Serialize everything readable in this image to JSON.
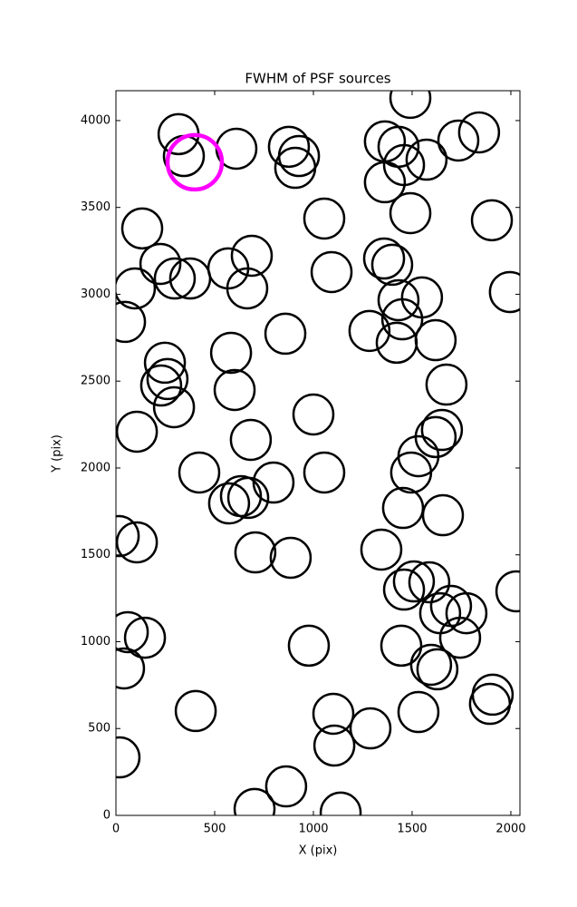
{
  "chart_data": {
    "type": "scatter",
    "title": "FWHM of PSF sources",
    "x_label": "X (pix)",
    "y_label": "Y (pix)",
    "x": [
      1491,
      317,
      344,
      610,
      876,
      927,
      908,
      1362,
      1431,
      1459,
      1573,
      1734,
      1839,
      1362,
      1491,
      1904,
      1055,
      133,
      225,
      96,
      298,
      376,
      569,
      688,
      665,
      1092,
      1358,
      1399,
      1431,
      1550,
      1995,
      46,
      1450,
      1284,
      858,
      1422,
      1619,
      583,
      248,
      261,
      229,
      1674,
      601,
      294,
      1000,
      1651,
      1619,
      683,
      106,
      1532,
      1495,
      422,
      1055,
      798,
      633,
      670,
      573,
      1454,
      1656,
      14,
      106,
      1344,
      706,
      885,
      1509,
      1587,
      1459,
      1642,
      1697,
      1775,
      2028,
      60,
      147,
      1743,
      1445,
      977,
      1596,
      1628,
      41,
      1908,
      1894,
      404,
      1532,
      1101,
      1289,
      1106,
      18,
      862,
      702,
      1138
    ],
    "values": [
      4131,
      3922,
      3796,
      3838,
      3849,
      3796,
      3728,
      3880,
      3849,
      3744,
      3775,
      3885,
      3932,
      3645,
      3467,
      3426,
      3436,
      3379,
      3175,
      3034,
      3091,
      3091,
      3149,
      3222,
      3034,
      3128,
      3206,
      3170,
      2966,
      2982,
      3013,
      2841,
      2856,
      2789,
      2773,
      2721,
      2736,
      2663,
      2606,
      2512,
      2475,
      2480,
      2449,
      2350,
      2308,
      2219,
      2178,
      2162,
      2209,
      2068,
      1974,
      1974,
      1974,
      1916,
      1838,
      1828,
      1796,
      1770,
      1728,
      1608,
      1572,
      1530,
      1514,
      1483,
      1347,
      1342,
      1300,
      1164,
      1206,
      1164,
      1290,
      1055,
      1023,
      1023,
      977,
      977,
      867,
      841,
      846,
      695,
      642,
      601,
      595,
      585,
      501,
      402,
      334,
      167,
      37,
      16
    ],
    "color": "#000000",
    "highlight": {
      "x": 399,
      "y": 3760,
      "color": "#ff00ff"
    },
    "xlim": [
      0,
      2046
    ],
    "ylim": [
      0,
      4172
    ],
    "xticks": [
      0,
      500,
      1000,
      1500,
      2000
    ],
    "yticks": [
      0,
      500,
      1000,
      1500,
      2000,
      2500,
      3000,
      3500,
      4000
    ],
    "grid": false
  }
}
